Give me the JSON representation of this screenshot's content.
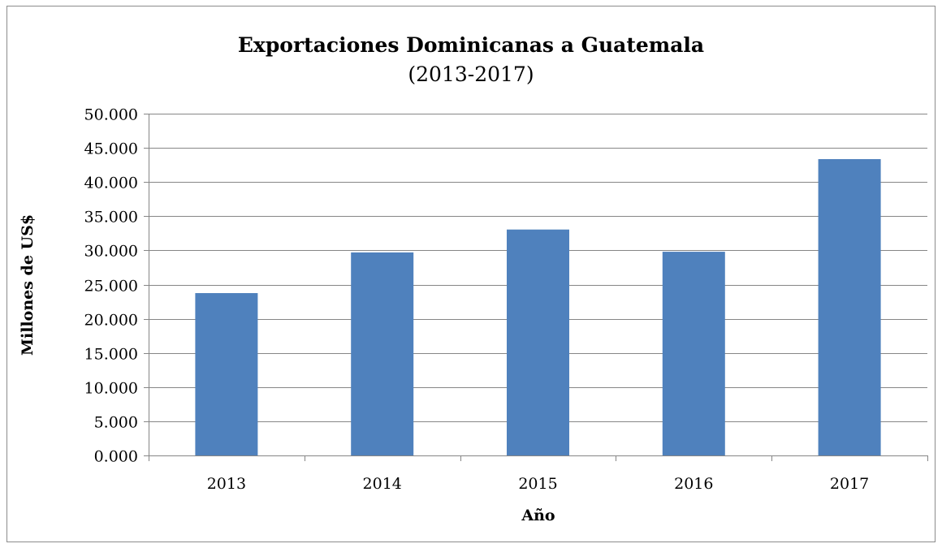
{
  "chart_data": {
    "type": "bar",
    "title": "Exportaciones Dominicanas a Guatemala",
    "subtitle": "(2013-2017)",
    "xlabel": "Año",
    "ylabel": "Millones de US$",
    "categories": [
      "2013",
      "2014",
      "2015",
      "2016",
      "2017"
    ],
    "values": [
      23.75,
      29.7,
      33.05,
      29.8,
      43.35
    ],
    "ylim": [
      0,
      50
    ],
    "yticks": [
      0,
      5,
      10,
      15,
      20,
      25,
      30,
      35,
      40,
      45,
      50
    ],
    "ytick_labels": [
      "0.000",
      "5.000",
      "10.000",
      "15.000",
      "20.000",
      "25.000",
      "30.000",
      "35.000",
      "40.000",
      "45.000",
      "50.000"
    ],
    "grid": true,
    "legend": "none",
    "bar_color": "#4F81BD",
    "grid_color": "#868686"
  }
}
